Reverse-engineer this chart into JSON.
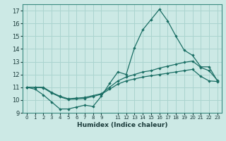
{
  "title": "",
  "xlabel": "Humidex (Indice chaleur)",
  "bg_color": "#cce9e5",
  "grid_color": "#aad4cf",
  "line_color": "#1a6e64",
  "x_values": [
    0,
    1,
    2,
    3,
    4,
    5,
    6,
    7,
    8,
    9,
    10,
    11,
    12,
    13,
    14,
    15,
    16,
    17,
    18,
    19,
    20,
    21,
    22,
    23
  ],
  "line_max": [
    11.0,
    10.85,
    10.4,
    9.85,
    9.3,
    9.3,
    9.45,
    9.6,
    9.5,
    10.3,
    11.3,
    12.2,
    12.0,
    14.1,
    15.5,
    16.3,
    17.1,
    16.2,
    15.0,
    13.9,
    13.5,
    12.6,
    12.6,
    11.5
  ],
  "line_upper_mid": [
    11.0,
    11.0,
    11.0,
    10.6,
    10.3,
    10.1,
    10.15,
    10.2,
    10.35,
    10.5,
    11.0,
    11.5,
    11.8,
    12.0,
    12.2,
    12.3,
    12.5,
    12.65,
    12.8,
    12.95,
    13.05,
    12.55,
    12.3,
    11.55
  ],
  "line_lower_mid": [
    11.0,
    11.0,
    10.95,
    10.55,
    10.25,
    10.05,
    10.08,
    10.12,
    10.28,
    10.45,
    10.85,
    11.25,
    11.5,
    11.65,
    11.8,
    11.9,
    12.0,
    12.1,
    12.2,
    12.3,
    12.4,
    11.85,
    11.5,
    11.45
  ],
  "ylim": [
    9.0,
    17.5
  ],
  "xlim": [
    -0.5,
    23.5
  ],
  "yticks": [
    9,
    10,
    11,
    12,
    13,
    14,
    15,
    16,
    17
  ],
  "xtick_vals": [
    0,
    1,
    2,
    3,
    4,
    5,
    6,
    7,
    8,
    9,
    11,
    12,
    13,
    14,
    15,
    16,
    17,
    18,
    19,
    20,
    21,
    22,
    23
  ],
  "xtick_labels": [
    "0",
    "1",
    "2",
    "3",
    "4",
    "5",
    "6",
    "7",
    "8",
    "9",
    "11",
    "12",
    "13",
    "14",
    "15",
    "16",
    "17",
    "18",
    "19",
    "20",
    "21",
    "22",
    "23"
  ]
}
